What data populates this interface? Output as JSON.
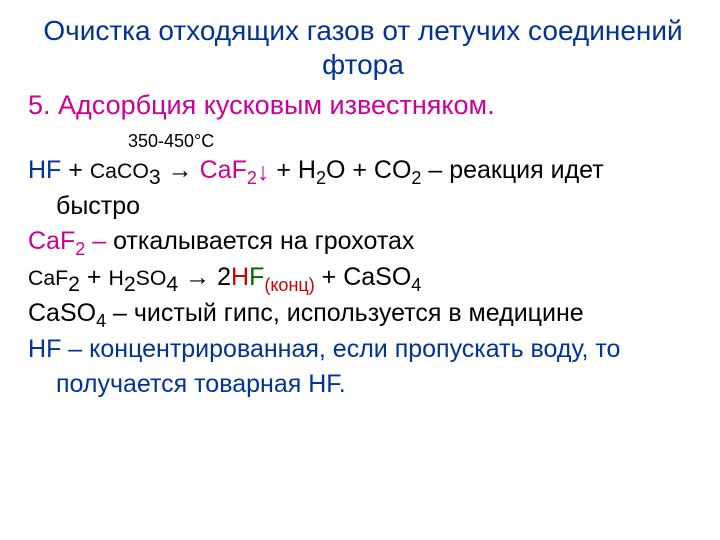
{
  "title": "Очистка отходящих газов от летучих соединений фтора",
  "subtitle": "5. Адсорбция кусковым известняком.",
  "temperature": "350-450°С",
  "eq1": {
    "hf": "HF",
    "plus1": " + ",
    "caco3_ca": "Ca",
    "caco3_co": "CO",
    "caco3_3": "3",
    "arrow": " → ",
    "caf2_ca": "Ca",
    "caf2_f": "F",
    "caf2_2": "2",
    "down": "↓",
    "plus2": " + ",
    "h2o_h": "H",
    "h2o_2": "2",
    "h2o_o": "O",
    "plus3": " + ",
    "co2_co": "CO",
    "co2_2": "2",
    "tail": " – реакция идет"
  },
  "eq1_cont": "быстро",
  "caf2_line": {
    "caf2_ca": "Ca",
    "caf2_f": "F",
    "caf2_2": "2",
    "dash": " – ",
    "rest": "откалывается на грохотах"
  },
  "eq2": {
    "caf2_ca": "Ca",
    "caf2_f": "F",
    "caf2_2": "2",
    "plus1": " + ",
    "h2so4_h": "H",
    "h2so4_2a": "2",
    "h2so4_so": "SO",
    "h2so4_4": "4",
    "arrow": " → ",
    "two": "2",
    "hf_h": "H",
    "hf_f": "F",
    "konc": "(конц)",
    "plus2": " + ",
    "caso4_ca": "Ca",
    "caso4_so": "SO",
    "caso4_4": "4"
  },
  "caso4_line": {
    "caso4_ca": "Ca",
    "caso4_so": "SO",
    "caso4_4": "4",
    "rest": " – чистый гипс, используется в медицине"
  },
  "hf_line": {
    "h": "H",
    "f": "F",
    "part1": " – концентрированная, если пропускать воду, то",
    "part2_a": "получается товарная ",
    "part2_h": "H",
    "part2_f": "F",
    "dot": "."
  }
}
